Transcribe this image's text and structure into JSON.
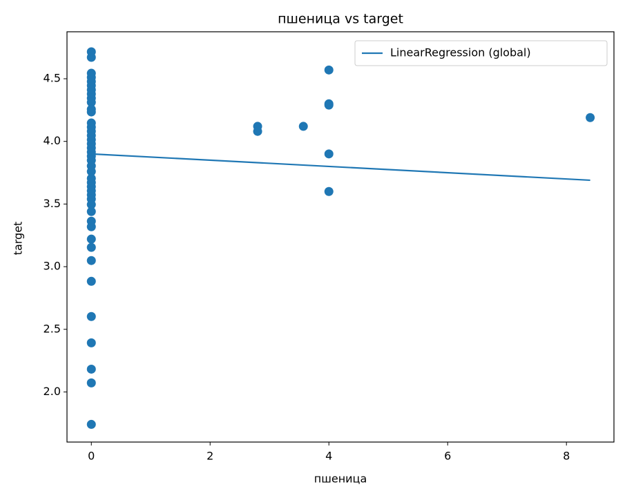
{
  "chart_data": {
    "type": "scatter",
    "title": "пшеница vs target",
    "x_label": "пшеница",
    "y_label": "target",
    "xlim": [
      -0.41,
      8.8
    ],
    "ylim": [
      1.6,
      4.875
    ],
    "xticks": [
      0,
      2,
      4,
      6,
      8
    ],
    "yticks": [
      {
        "value": 2,
        "label": "2.0"
      },
      2.5,
      {
        "value": 3,
        "label": "3.0"
      },
      3.5,
      {
        "value": 4,
        "label": "4.0"
      },
      4.5
    ],
    "legend": "upper right",
    "series": [
      {
        "kind": "scatter",
        "color": "#1f77b4",
        "x": [
          0,
          0,
          0,
          0,
          0,
          0,
          0,
          0,
          0,
          0,
          0,
          0,
          0,
          0,
          0,
          0,
          0,
          0,
          0,
          0,
          0,
          0,
          0,
          0,
          0,
          0,
          0,
          0,
          0,
          0,
          0,
          0,
          0,
          0,
          0,
          0,
          0,
          0,
          0,
          0,
          0,
          0,
          0,
          2.8,
          2.8,
          3.57,
          4,
          4,
          4,
          4,
          4,
          8.4
        ],
        "values": [
          4.715,
          4.671,
          4.544,
          4.511,
          4.478,
          4.445,
          4.412,
          4.379,
          4.345,
          4.312,
          4.257,
          4.235,
          4.147,
          4.114,
          4.081,
          4.047,
          4.014,
          3.981,
          3.948,
          3.915,
          3.882,
          3.849,
          3.804,
          3.76,
          3.705,
          3.672,
          3.639,
          3.606,
          3.573,
          3.54,
          3.496,
          3.44,
          3.363,
          3.319,
          3.22,
          3.154,
          3.049,
          2.883,
          2.602,
          2.392,
          2.182,
          2.072,
          1.741,
          4.12,
          4.08,
          4.12,
          4.57,
          4.3,
          4.29,
          3.9,
          3.6,
          4.19
        ]
      },
      {
        "kind": "line",
        "name": "LinearRegression (global)",
        "color": "#1f77b4",
        "x": [
          0,
          8.4
        ],
        "values": [
          3.9,
          3.69
        ]
      }
    ]
  }
}
